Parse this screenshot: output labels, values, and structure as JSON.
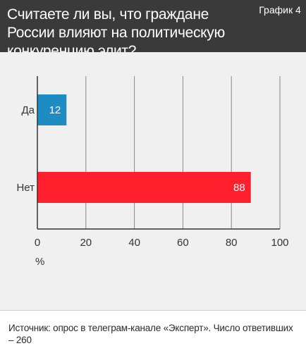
{
  "header": {
    "title": "Считаете ли вы, что граждане России влияют на политическую конкуренцию элит?",
    "badge": "График 4"
  },
  "source": {
    "text": "Источник: опрос в телеграм-канале «Эксперт». Число ответивших – 260"
  },
  "colors": {
    "header_bg": "#3a3a3a",
    "chart_bg": "#f0f0f0",
    "yes_bar": "#1e8bc3",
    "no_bar": "#ff1f2d",
    "grid": "#888888"
  },
  "chart_data": {
    "type": "bar",
    "orientation": "horizontal",
    "categories": [
      "Да",
      "Нет"
    ],
    "values": [
      12,
      88
    ],
    "value_labels": [
      "12",
      "88"
    ],
    "bar_colors": [
      "#1e8bc3",
      "#ff1f2d"
    ],
    "xlim": [
      0,
      100
    ],
    "xticks": [
      0,
      20,
      40,
      60,
      80,
      100
    ],
    "xtick_labels": [
      "0",
      "20",
      "40",
      "60",
      "80",
      "100"
    ],
    "xlabel": "%",
    "grid": true
  }
}
